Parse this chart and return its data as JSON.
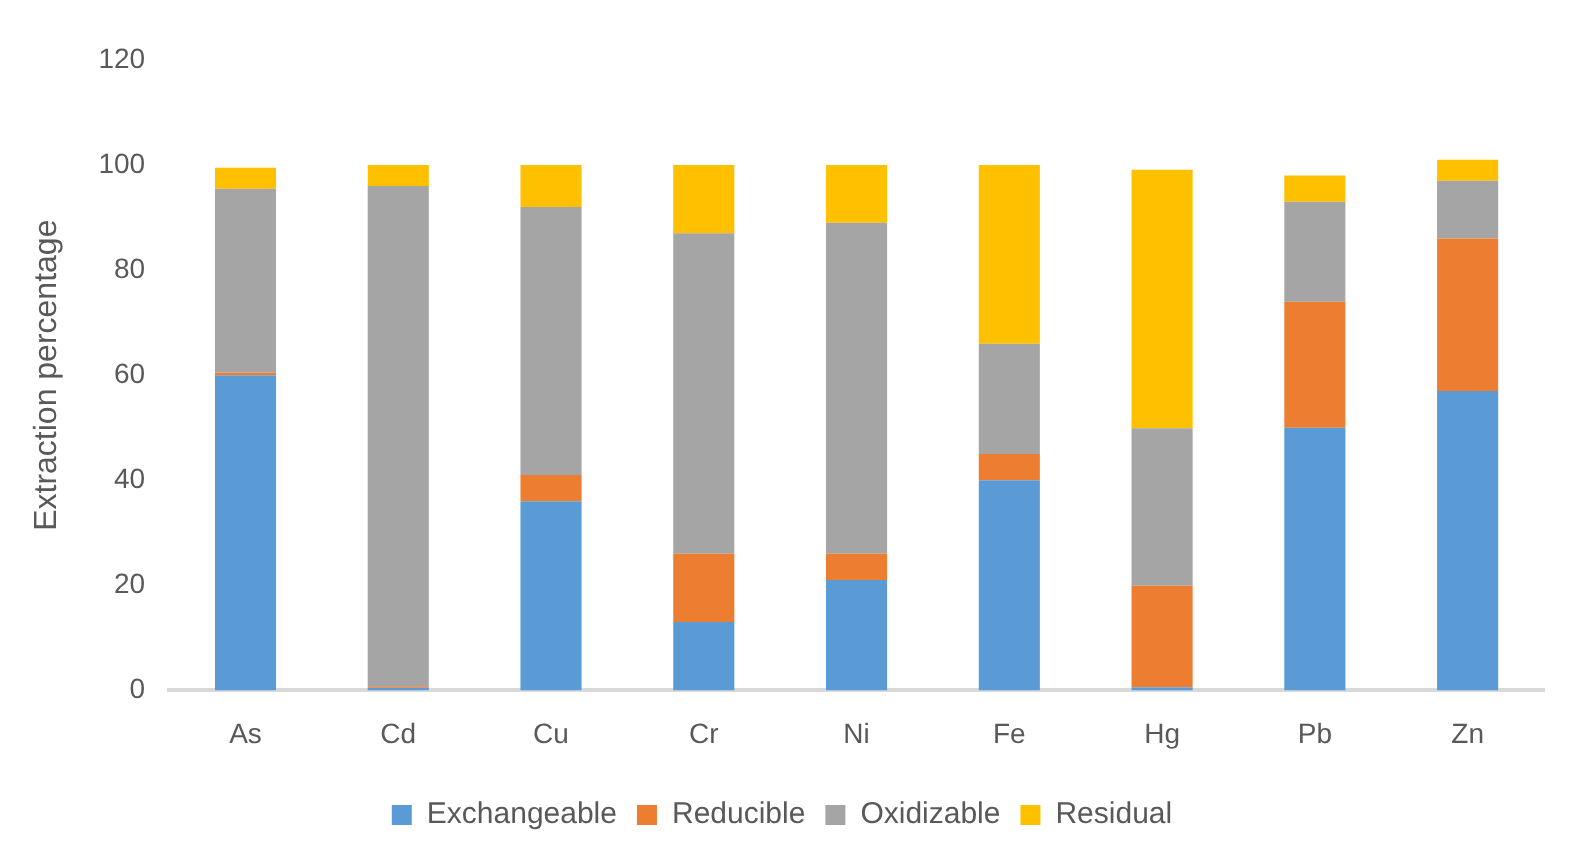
{
  "chart_data": {
    "type": "bar",
    "stacked": true,
    "ylabel": "Extraction percentage",
    "categories": [
      "As",
      "Cd",
      "Cu",
      "Cr",
      "Ni",
      "Fe",
      "Hg",
      "Pb",
      "Zn"
    ],
    "series": [
      {
        "name": "Exchangeable",
        "color": "#5b9bd5",
        "values": [
          60,
          0.5,
          36,
          13,
          21,
          40,
          0.6,
          50,
          57
        ]
      },
      {
        "name": "Reducible",
        "color": "#ed7d31",
        "values": [
          0.5,
          0.3,
          5,
          13,
          5,
          5,
          19.3,
          24,
          29
        ]
      },
      {
        "name": "Oxidizable",
        "color": "#a5a5a5",
        "values": [
          35,
          95.2,
          51,
          61,
          63,
          21,
          30,
          19,
          11
        ]
      },
      {
        "name": "Residual",
        "color": "#ffc000",
        "values": [
          4,
          4,
          8,
          13,
          11,
          34,
          49.2,
          5,
          4
        ]
      }
    ],
    "ylim": [
      0,
      120
    ],
    "yticks": [
      0,
      20,
      40,
      60,
      80,
      100,
      120
    ],
    "grid": false,
    "legend": "bottom"
  }
}
